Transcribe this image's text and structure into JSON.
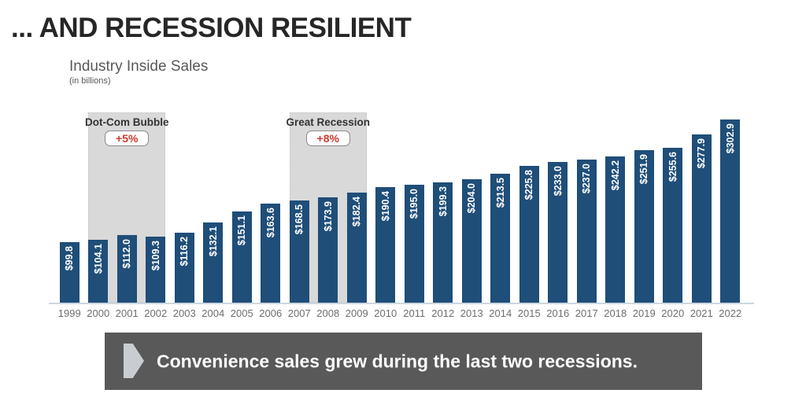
{
  "page": {
    "title": "... AND RECESSION RESILIENT"
  },
  "chart": {
    "subtitle": "Industry Inside Sales",
    "units": "(in billions)"
  },
  "chart_data": {
    "type": "bar",
    "title": "Industry Inside Sales",
    "units": "in billions",
    "categories": [
      "1999",
      "2000",
      "2001",
      "2002",
      "2003",
      "2004",
      "2005",
      "2006",
      "2007",
      "2008",
      "2009",
      "2010",
      "2011",
      "2012",
      "2013",
      "2014",
      "2015",
      "2016",
      "2017",
      "2018",
      "2019",
      "2020",
      "2021",
      "2022"
    ],
    "values": [
      99.8,
      104.1,
      112.0,
      109.3,
      116.2,
      132.1,
      151.1,
      163.6,
      168.5,
      173.9,
      182.4,
      190.4,
      195.0,
      199.3,
      204.0,
      213.5,
      225.8,
      233.0,
      237.0,
      242.2,
      251.9,
      255.6,
      277.9,
      302.9
    ],
    "bar_labels": [
      "$99.8",
      "$104.1",
      "$112.0",
      "$109.3",
      "$116.2",
      "$132.1",
      "$151.1",
      "$163.6",
      "$168.5",
      "$173.9",
      "$182.4",
      "$190.4",
      "$195.0",
      "$199.3",
      "$204.0",
      "$213.5",
      "$225.8",
      "$233.0",
      "$237.0",
      "$242.2",
      "$251.9",
      "$255.6",
      "$277.9",
      "$302.9"
    ],
    "ylim": [
      0,
      320
    ],
    "grid": false,
    "legend": "none",
    "bar_color": "#1f4e79",
    "bar_label_color": "#ffffff",
    "axis_line_color": "#ccd7e1",
    "tick_label_color": "#6e6e6e",
    "annotations": [
      {
        "label": "Dot-Com Bubble",
        "badge": "+5%",
        "from": "2000",
        "to": "2002",
        "band_color": "#d9d9d9",
        "badge_color": "#cf3a2e"
      },
      {
        "label": "Great Recession",
        "badge": "+8%",
        "from": "2007",
        "to": "2009",
        "band_color": "#d9d9d9",
        "badge_color": "#cf3a2e"
      }
    ]
  },
  "banner": {
    "text": "Convenience sales grew during the last two recessions.",
    "bg_color": "#595959",
    "arrow_icon": "pentagon-arrow-right-icon",
    "arrow_color": "#c9cdd2"
  }
}
